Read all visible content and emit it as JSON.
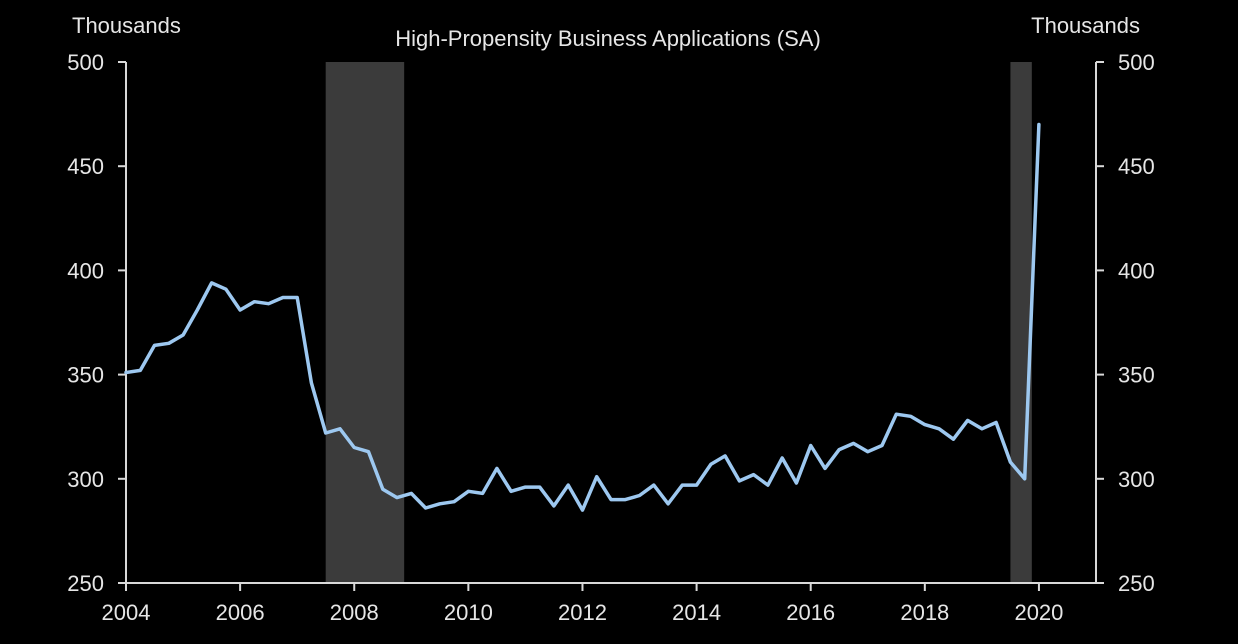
{
  "chart_data": {
    "type": "line",
    "title": "High-Propensity  Business Applications (SA)",
    "ylabel_left": "Thousands",
    "ylabel_right": "Thousands",
    "xlabel": "",
    "xlim": [
      2004,
      2021
    ],
    "ylim": [
      250,
      500
    ],
    "yticks": [
      250,
      300,
      350,
      400,
      450,
      500
    ],
    "xticks": [
      2004,
      2006,
      2008,
      2010,
      2012,
      2014,
      2016,
      2018,
      2020
    ],
    "ytick_labels": [
      "250",
      "300",
      "350",
      "400",
      "450",
      "500"
    ],
    "xtick_labels": [
      "2004",
      "2006",
      "2008",
      "2010",
      "2012",
      "2014",
      "2016",
      "2018",
      "2020"
    ],
    "grid": false,
    "legend": "none",
    "line_color": "#9dc8f0",
    "recession_color": "#3b3b3b",
    "recessions": [
      {
        "start": 2007.5,
        "end": 2008.875
      },
      {
        "start": 2019.5,
        "end": 2019.875
      }
    ],
    "series": [
      {
        "x": [
          2004.0,
          2004.25,
          2004.5,
          2004.75,
          2005.0,
          2005.25,
          2005.5,
          2005.75,
          2006.0,
          2006.25,
          2006.5,
          2006.75,
          2007.0,
          2007.25,
          2007.5,
          2007.75,
          2008.0,
          2008.25,
          2008.5,
          2008.75,
          2009.0,
          2009.25,
          2009.5,
          2009.75,
          2010.0,
          2010.25,
          2010.5,
          2010.75,
          2011.0,
          2011.25,
          2011.5,
          2011.75,
          2012.0,
          2012.25,
          2012.5,
          2012.75,
          2013.0,
          2013.25,
          2013.5,
          2013.75,
          2014.0,
          2014.25,
          2014.5,
          2014.75,
          2015.0,
          2015.25,
          2015.5,
          2015.75,
          2016.0,
          2016.25,
          2016.5,
          2016.75,
          2017.0,
          2017.25,
          2017.5,
          2017.75,
          2018.0,
          2018.25,
          2018.5,
          2018.75,
          2019.0,
          2019.25,
          2019.5,
          2019.75,
          2020.0
        ],
        "values": [
          351,
          352,
          364,
          365,
          369,
          381,
          394,
          391,
          381,
          385,
          384,
          387,
          387,
          346,
          322,
          324,
          315,
          313,
          295,
          291,
          293,
          286,
          288,
          289,
          294,
          293,
          305,
          294,
          296,
          296,
          287,
          297,
          285,
          301,
          290,
          290,
          292,
          297,
          288,
          297,
          297,
          307,
          311,
          299,
          302,
          297,
          310,
          298,
          316,
          305,
          314,
          317,
          313,
          316,
          331,
          330,
          326,
          324,
          319,
          328,
          324,
          327,
          308,
          300,
          470
        ]
      }
    ]
  }
}
